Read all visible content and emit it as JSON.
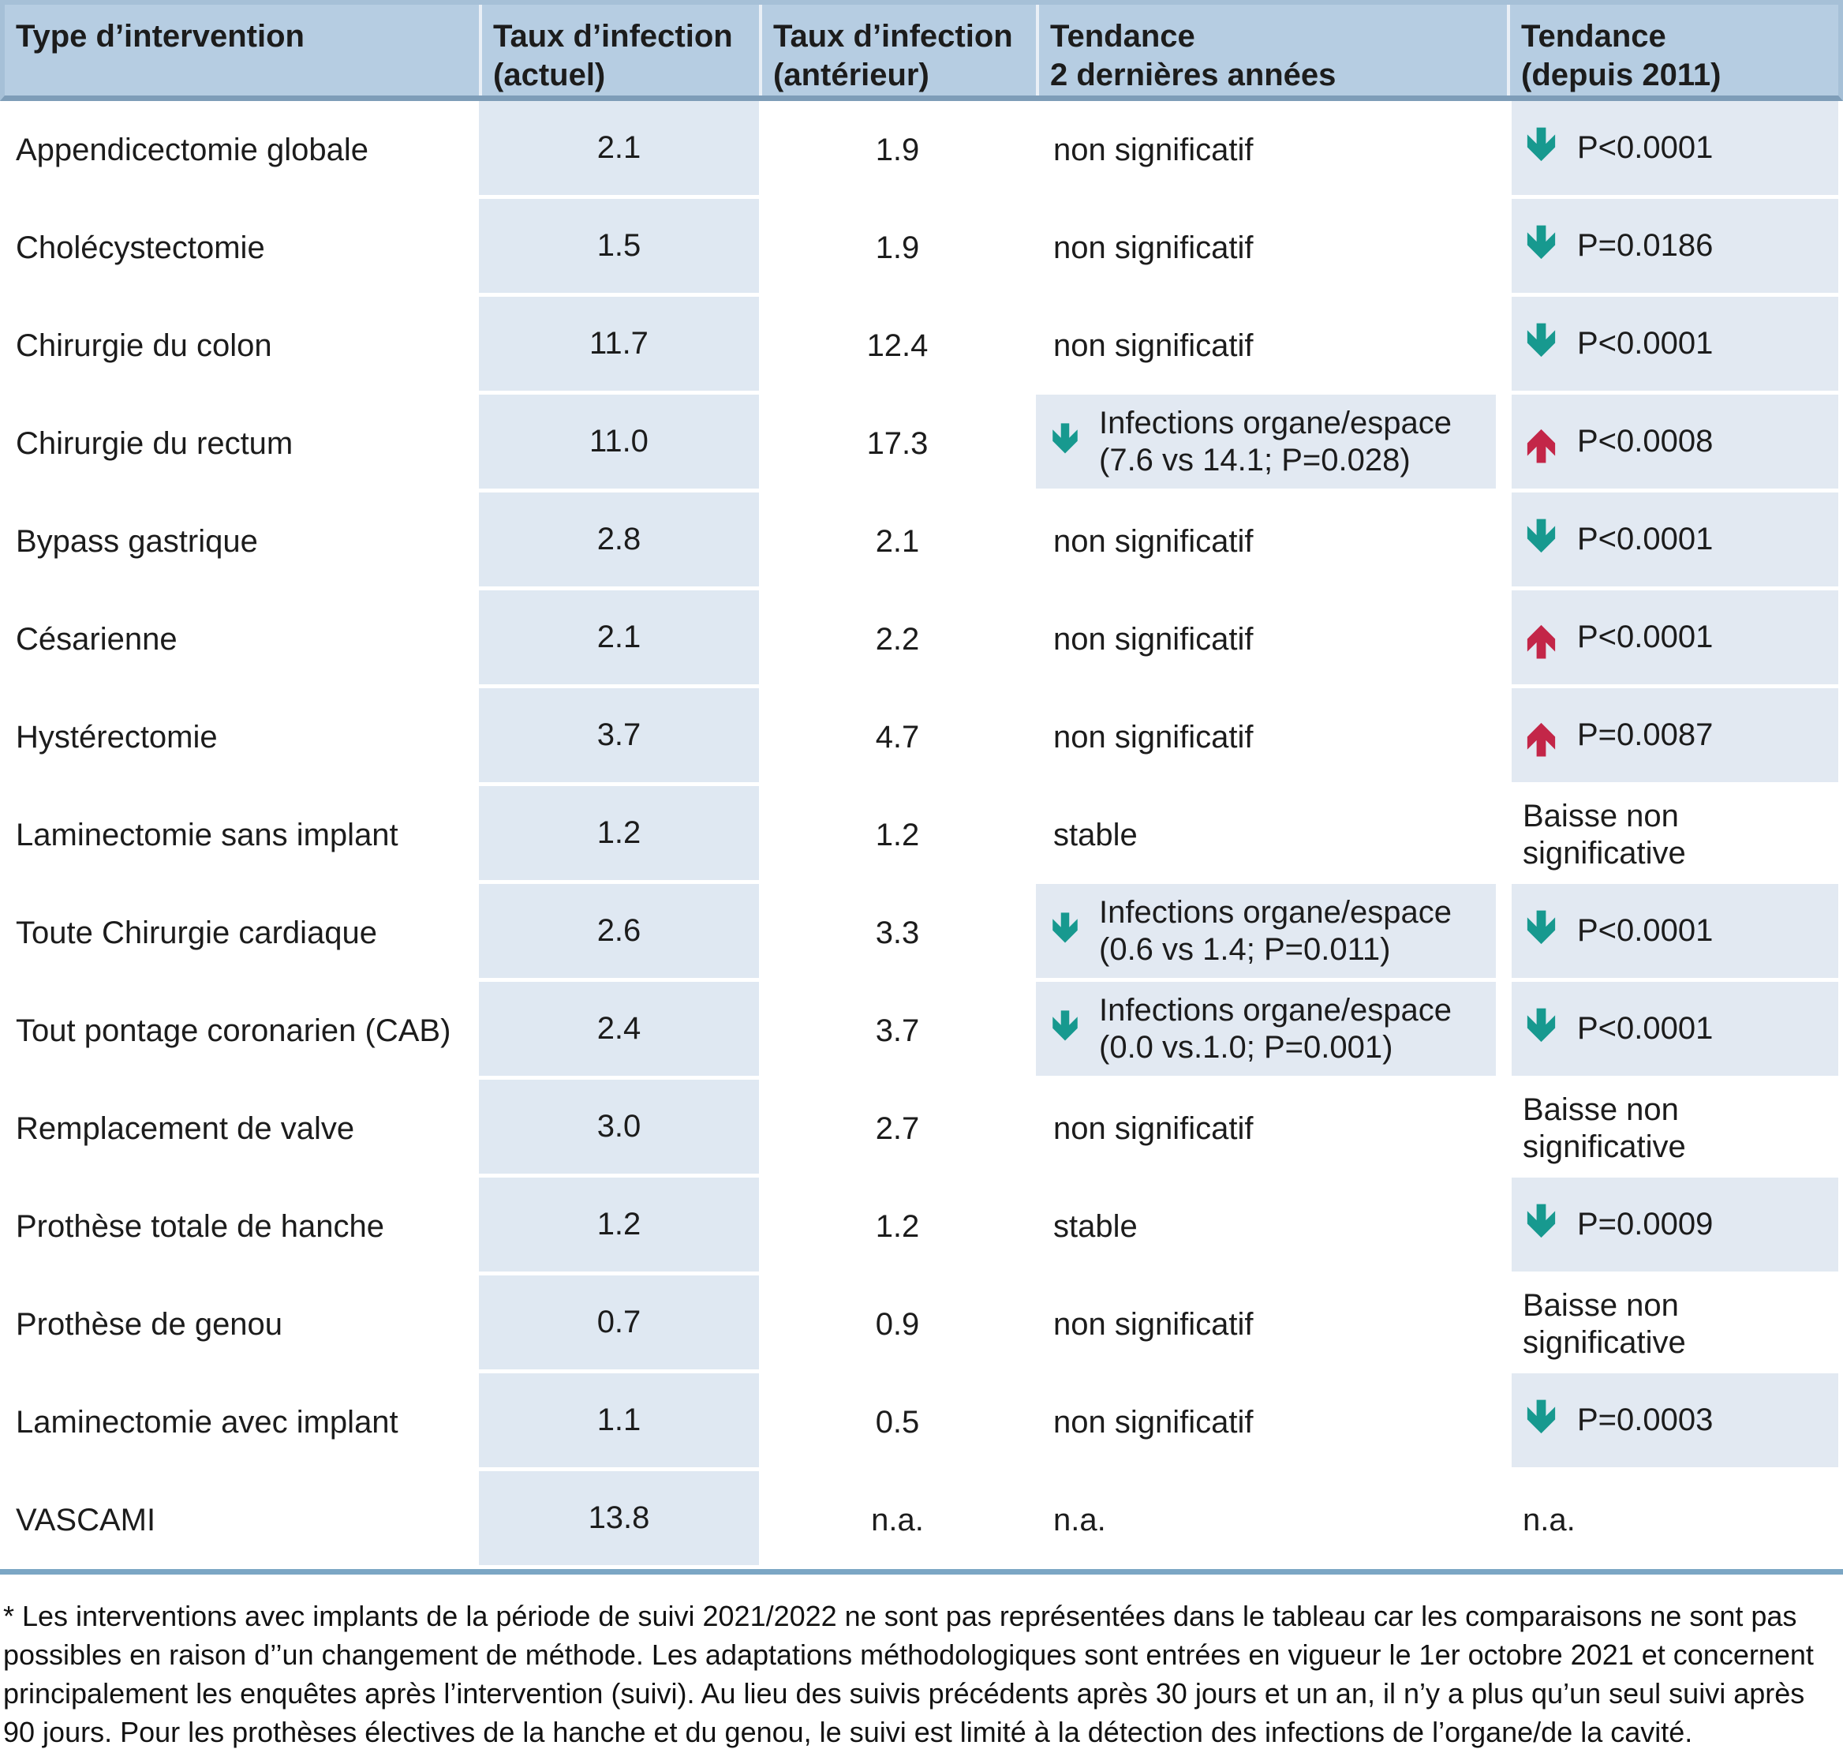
{
  "table": {
    "columns": [
      {
        "label": "Type d’intervention"
      },
      {
        "label": "Taux d’infection\n(actuel)"
      },
      {
        "label": "Taux d’infection\n(antérieur)"
      },
      {
        "label": "Tendance\n2 dernières années"
      },
      {
        "label": "Tendance\n(depuis 2011)"
      }
    ],
    "rows": [
      {
        "intervention": "Appendicectomie globale",
        "taux_actuel": "2.1",
        "taux_anterieur": "1.9",
        "tendance_2ans": {
          "text": "non significatif",
          "arrow": null,
          "shaded": false
        },
        "tendance_2011": {
          "text": "P<0.0001",
          "arrow": "down",
          "shaded": true
        }
      },
      {
        "intervention": "Cholécystectomie",
        "taux_actuel": "1.5",
        "taux_anterieur": "1.9",
        "tendance_2ans": {
          "text": "non significatif",
          "arrow": null,
          "shaded": false
        },
        "tendance_2011": {
          "text": "P=0.0186",
          "arrow": "down",
          "shaded": true
        }
      },
      {
        "intervention": "Chirurgie du colon",
        "taux_actuel": "11.7",
        "taux_anterieur": "12.4",
        "tendance_2ans": {
          "text": "non significatif",
          "arrow": null,
          "shaded": false
        },
        "tendance_2011": {
          "text": "P<0.0001",
          "arrow": "down",
          "shaded": true
        }
      },
      {
        "intervention": "Chirurgie du rectum",
        "taux_actuel": "11.0",
        "taux_anterieur": "17.3",
        "tendance_2ans": {
          "text": "Infections organe/espace\n(7.6 vs 14.1; P=0.028)",
          "arrow": "down",
          "shaded": true
        },
        "tendance_2011": {
          "text": "P<0.0008",
          "arrow": "up",
          "shaded": true
        }
      },
      {
        "intervention": "Bypass gastrique",
        "taux_actuel": "2.8",
        "taux_anterieur": "2.1",
        "tendance_2ans": {
          "text": "non significatif",
          "arrow": null,
          "shaded": false
        },
        "tendance_2011": {
          "text": "P<0.0001",
          "arrow": "down",
          "shaded": true
        }
      },
      {
        "intervention": "Césarienne",
        "taux_actuel": "2.1",
        "taux_anterieur": "2.2",
        "tendance_2ans": {
          "text": "non significatif",
          "arrow": null,
          "shaded": false
        },
        "tendance_2011": {
          "text": "P<0.0001",
          "arrow": "up",
          "shaded": true
        }
      },
      {
        "intervention": "Hystérectomie",
        "taux_actuel": "3.7",
        "taux_anterieur": "4.7",
        "tendance_2ans": {
          "text": "non significatif",
          "arrow": null,
          "shaded": false
        },
        "tendance_2011": {
          "text": "P=0.0087",
          "arrow": "up",
          "shaded": true
        }
      },
      {
        "intervention": "Laminectomie sans implant",
        "taux_actuel": "1.2",
        "taux_anterieur": "1.2",
        "tendance_2ans": {
          "text": "stable",
          "arrow": null,
          "shaded": false
        },
        "tendance_2011": {
          "text": "Baisse non\nsignificative",
          "arrow": null,
          "shaded": false
        }
      },
      {
        "intervention": "Toute Chirurgie cardiaque",
        "taux_actuel": "2.6",
        "taux_anterieur": "3.3",
        "tendance_2ans": {
          "text": "Infections organe/espace\n(0.6 vs 1.4; P=0.011)",
          "arrow": "down",
          "shaded": true
        },
        "tendance_2011": {
          "text": "P<0.0001",
          "arrow": "down",
          "shaded": true
        }
      },
      {
        "intervention": "Tout pontage coronarien (CAB)",
        "taux_actuel": "2.4",
        "taux_anterieur": "3.7",
        "tendance_2ans": {
          "text": "Infections organe/espace\n(0.0 vs.1.0; P=0.001)",
          "arrow": "down",
          "shaded": true
        },
        "tendance_2011": {
          "text": "P<0.0001",
          "arrow": "down",
          "shaded": true
        }
      },
      {
        "intervention": "Remplacement de valve",
        "taux_actuel": "3.0",
        "taux_anterieur": "2.7",
        "tendance_2ans": {
          "text": "non significatif",
          "arrow": null,
          "shaded": false
        },
        "tendance_2011": {
          "text": "Baisse non\nsignificative",
          "arrow": null,
          "shaded": false
        }
      },
      {
        "intervention": "Prothèse totale de hanche",
        "taux_actuel": "1.2",
        "taux_anterieur": "1.2",
        "tendance_2ans": {
          "text": "stable",
          "arrow": null,
          "shaded": false
        },
        "tendance_2011": {
          "text": "P=0.0009",
          "arrow": "down",
          "shaded": true
        }
      },
      {
        "intervention": "Prothèse de genou",
        "taux_actuel": "0.7",
        "taux_anterieur": "0.9",
        "tendance_2ans": {
          "text": "non significatif",
          "arrow": null,
          "shaded": false
        },
        "tendance_2011": {
          "text": "Baisse non\nsignificative",
          "arrow": null,
          "shaded": false
        }
      },
      {
        "intervention": "Laminectomie avec implant",
        "taux_actuel": "1.1",
        "taux_anterieur": "0.5",
        "tendance_2ans": {
          "text": "non significatif",
          "arrow": null,
          "shaded": false
        },
        "tendance_2011": {
          "text": "P=0.0003",
          "arrow": "down",
          "shaded": true
        }
      },
      {
        "intervention": "VASCAMI",
        "taux_actuel": "13.8",
        "taux_anterieur": "n.a.",
        "tendance_2ans": {
          "text": "n.a.",
          "arrow": null,
          "shaded": false
        },
        "tendance_2011": {
          "text": "n.a.",
          "arrow": null,
          "shaded": false
        }
      }
    ]
  },
  "icons": {
    "down_arrow": "trend-down-icon",
    "up_arrow": "trend-up-icon"
  },
  "colors": {
    "header_bg": "#b6cde2",
    "header_rule": "#7e9db8",
    "shaded_cell": "#e2e9f2",
    "shaded_cell_col2": "#dfe8f2",
    "bottom_rule": "#7ba6c4",
    "arrow_down_teal": "#17998f",
    "arrow_up_red": "#c32648",
    "text": "#1c1c1c"
  },
  "footnote": "* Les interventions avec implants de la période de suivi 2021/2022 ne sont pas représentées dans le tableau car les comparaisons ne sont pas possibles en raison d’’un changement de méthode. Les adaptations méthodologiques sont entrées en vigueur le 1er octobre 2021 et concernent principalement les enquêtes après l’intervention (suivi). Au lieu des suivis précédents après 30 jours et un an, il n’y a plus qu’un seul suivi après 90 jours. Pour les prothèses électives de la hanche et du genou, le suivi est limité à la détection des infections de l’organe/de la cavité."
}
